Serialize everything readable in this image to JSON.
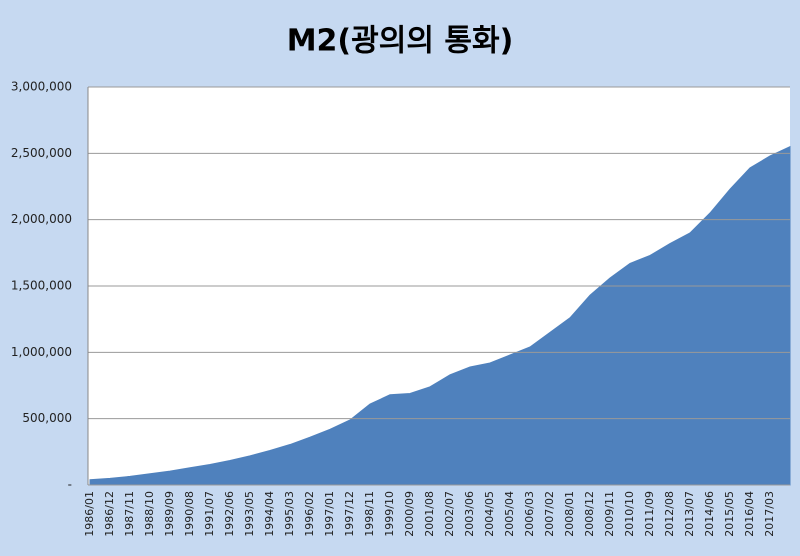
{
  "chart_data": {
    "type": "area",
    "title": "M2(광의의 통화)",
    "categories": [
      "1986/01",
      "1986/12",
      "1987/11",
      "1988/10",
      "1989/09",
      "1990/08",
      "1991/07",
      "1992/06",
      "1993/05",
      "1994/04",
      "1995/03",
      "1996/02",
      "1997/01",
      "1997/12",
      "1998/11",
      "1999/10",
      "2000/09",
      "2001/08",
      "2002/07",
      "2003/06",
      "2004/05",
      "2005/04",
      "2006/03",
      "2007/02",
      "2008/01",
      "2008/12",
      "2009/11",
      "2010/10",
      "2011/09",
      "2012/08",
      "2013/07",
      "2014/06",
      "2015/05",
      "2016/04",
      "2017/03",
      null
    ],
    "values": [
      40000,
      50000,
      65000,
      85000,
      105000,
      130000,
      155000,
      185000,
      220000,
      260000,
      305000,
      360000,
      420000,
      490000,
      610000,
      680000,
      690000,
      740000,
      830000,
      890000,
      920000,
      980000,
      1040000,
      1150000,
      1260000,
      1430000,
      1560000,
      1670000,
      1730000,
      1820000,
      1900000,
      2050000,
      2230000,
      2390000,
      2480000,
      2550000
    ],
    "color": "#4f81bd",
    "ylim": [
      0,
      3000000
    ],
    "yticks": [
      {
        "value": 0,
        "label": "-"
      },
      {
        "value": 500000,
        "label": "500,000"
      },
      {
        "value": 1000000,
        "label": "1,000,000"
      },
      {
        "value": 1500000,
        "label": "1,500,000"
      },
      {
        "value": 2000000,
        "label": "2,000,000"
      },
      {
        "value": 2500000,
        "label": "2,500,000"
      },
      {
        "value": 3000000,
        "label": "3,000,000"
      }
    ],
    "grid": true
  }
}
